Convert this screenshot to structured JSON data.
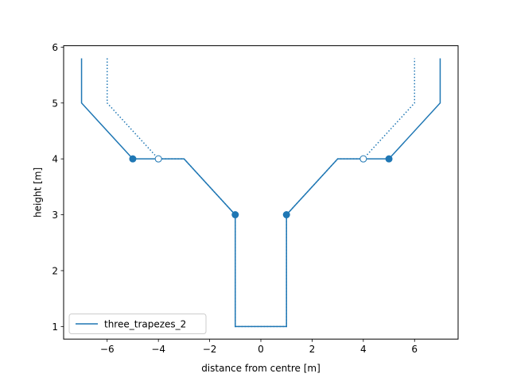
{
  "chart_data": {
    "type": "line",
    "xlabel": "distance from centre [m]",
    "ylabel": "height [m]",
    "xlim": [
      -7.7,
      7.7
    ],
    "ylim": [
      0.775,
      6.025
    ],
    "xticks": [
      -6,
      -4,
      -2,
      0,
      2,
      4,
      6
    ],
    "xtick_labels": [
      "−6",
      "−4",
      "−2",
      "0",
      "2",
      "4",
      "6"
    ],
    "yticks": [
      1,
      2,
      3,
      4,
      5,
      6
    ],
    "ytick_labels": [
      "1",
      "2",
      "3",
      "4",
      "5",
      "6"
    ],
    "grid": false,
    "legend_position": "lower-left",
    "color": "#1f77b4",
    "series": [
      {
        "name": "three_trapezes_2",
        "style": "solid",
        "x": [
          -7,
          -7,
          -5,
          -3,
          -1,
          -1,
          1,
          1,
          3,
          5,
          7,
          7
        ],
        "y": [
          5.8,
          5,
          4,
          4,
          3,
          1,
          1,
          3,
          4,
          4,
          5,
          5.8
        ]
      },
      {
        "style": "dotted",
        "x": [
          -6,
          -6,
          -4,
          -3,
          -1,
          -1,
          1,
          1,
          3,
          4,
          6,
          6
        ],
        "y": [
          5.8,
          5,
          4,
          4,
          3,
          1,
          1,
          3,
          4,
          4,
          5,
          5.8
        ]
      }
    ],
    "markers_filled": {
      "x": [
        -5,
        -1,
        1,
        5
      ],
      "y": [
        4,
        3,
        3,
        4
      ]
    },
    "markers_open": {
      "x": [
        -4,
        4
      ],
      "y": [
        4,
        4
      ]
    }
  }
}
